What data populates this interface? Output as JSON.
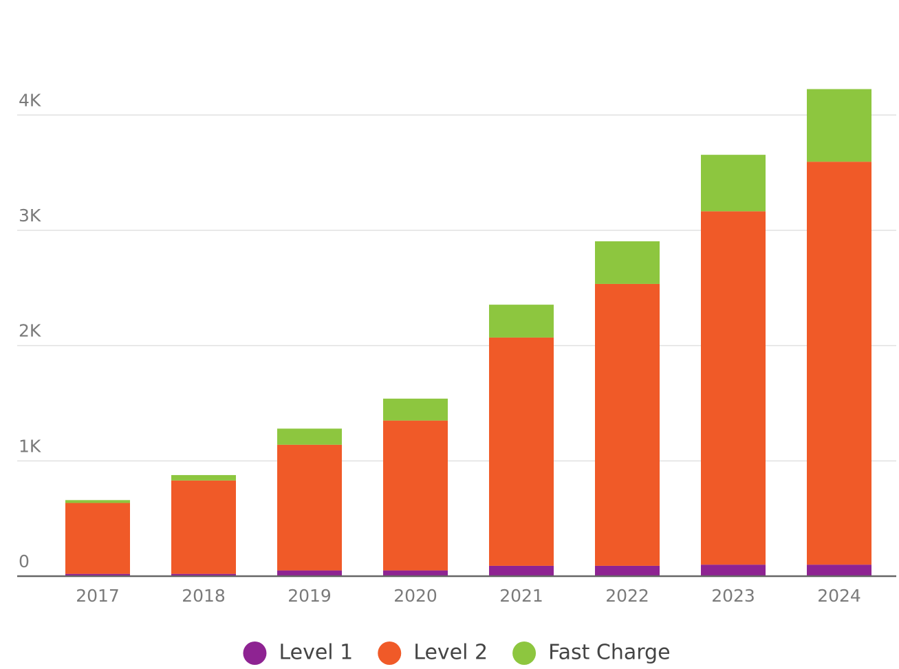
{
  "chart_data": {
    "type": "stacked_bar",
    "categories": [
      "2017",
      "2018",
      "2019",
      "2020",
      "2021",
      "2022",
      "2023",
      "2024"
    ],
    "series": [
      {
        "name": "Level 1",
        "color": "#8e2392",
        "values": [
          20,
          20,
          50,
          50,
          90,
          90,
          100,
          100
        ]
      },
      {
        "name": "Level 2",
        "color": "#f05a28",
        "values": [
          615,
          810,
          1090,
          1300,
          1980,
          2445,
          3065,
          3495
        ]
      },
      {
        "name": "Fast Charge",
        "color": "#8dc63f",
        "values": [
          25,
          47,
          140,
          190,
          285,
          370,
          490,
          630
        ]
      }
    ],
    "ylim": [
      0,
      4300
    ],
    "yticks": [
      0,
      {
        "value": 1000,
        "label": "1K"
      },
      {
        "value": 2000,
        "label": "2K"
      },
      {
        "value": 3000,
        "label": "3K"
      },
      {
        "value": 4000,
        "label": "4K"
      }
    ],
    "grid": true,
    "legend": "bottom"
  }
}
